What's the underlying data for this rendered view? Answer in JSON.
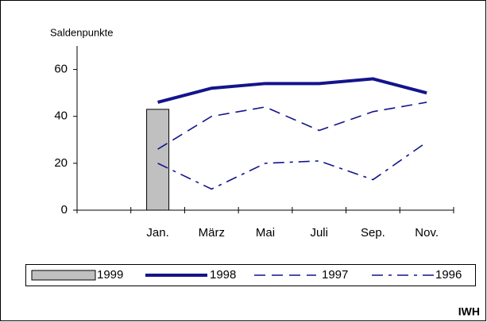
{
  "chart_data": {
    "type": "line",
    "y_label": "Saldenpunkte",
    "source": "IWH",
    "categories": [
      null,
      "Jan.",
      "März",
      "Mai",
      "Juli",
      "Sep.",
      "Nov."
    ],
    "series": [
      {
        "name": "1999",
        "color": "#c0c0c0",
        "style": "bar",
        "values": [
          null,
          43,
          null,
          null,
          null,
          null,
          null
        ]
      },
      {
        "name": "1998",
        "color": "#14148c",
        "style": "solid",
        "values": [
          null,
          46,
          52,
          54,
          54,
          56,
          50
        ]
      },
      {
        "name": "1997",
        "color": "#14148c",
        "style": "dashed",
        "values": [
          null,
          26,
          40,
          44,
          34,
          42,
          46
        ]
      },
      {
        "name": "1996",
        "color": "#14148c",
        "style": "dashdot",
        "values": [
          null,
          20,
          9,
          20,
          21,
          13,
          29
        ]
      }
    ],
    "ylim": [
      0,
      70
    ],
    "yticks": [
      0,
      20,
      40,
      60
    ]
  }
}
